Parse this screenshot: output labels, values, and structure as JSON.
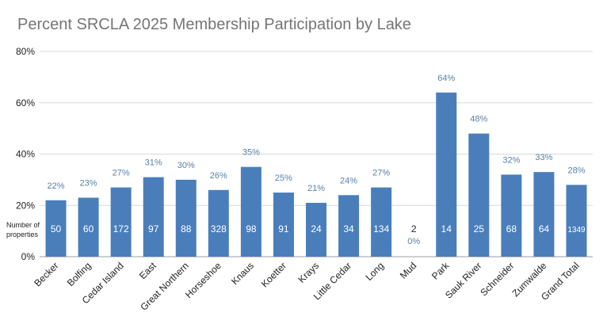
{
  "chart_data": {
    "type": "bar",
    "title": "Percent SRCLA 2025 Membership Participation by Lake",
    "categories": [
      "Becker",
      "Bolfing",
      "Cedar Island",
      "East",
      "Great Northern",
      "Horseshoe",
      "Knaus",
      "Koetter",
      "Krays",
      "Little Cedar",
      "Long",
      "Mud",
      "Park",
      "Sauk River",
      "Schneider",
      "Zumwalde",
      "Grand Total"
    ],
    "values": [
      22,
      23,
      27,
      31,
      30,
      26,
      35,
      25,
      21,
      24,
      27,
      0,
      64,
      48,
      32,
      33,
      28
    ],
    "value_labels": [
      "22%",
      "23%",
      "27%",
      "31%",
      "30%",
      "26%",
      "35%",
      "25%",
      "21%",
      "24%",
      "27%",
      "0%",
      "64%",
      "48%",
      "32%",
      "33%",
      "28%"
    ],
    "properties_label": "Number of properties",
    "properties": [
      "50",
      "60",
      "172",
      "97",
      "88",
      "328",
      "98",
      "91",
      "24",
      "34",
      "134",
      "2",
      "14",
      "25",
      "68",
      "64",
      "1349"
    ],
    "ylim": [
      0,
      80
    ],
    "yticks": [
      0,
      20,
      40,
      60,
      80
    ],
    "ytick_labels": [
      "0%",
      "20%",
      "40%",
      "60%",
      "80%"
    ],
    "grid": true,
    "bar_color": "#4a7ebb",
    "label_color": "#5a7fa8"
  }
}
